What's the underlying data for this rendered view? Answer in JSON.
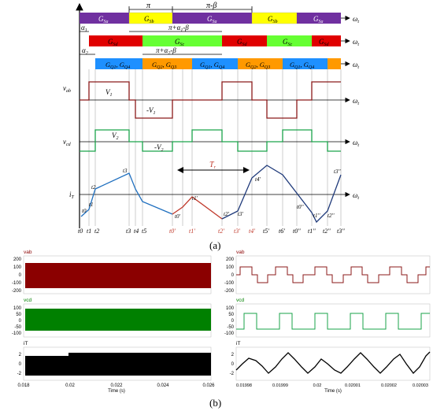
{
  "top_axis": {
    "wt": "ω",
    "t": "t"
  },
  "segments": {
    "row1": [
      {
        "label": "G",
        "sub": "Sa",
        "color": "#7030a0"
      },
      {
        "label": "G",
        "sub": "Sb",
        "color": "#ffff00"
      },
      {
        "label": "G",
        "sub": "Sa",
        "color": "#7030a0"
      },
      {
        "label": "G",
        "sub": "Sb",
        "color": "#ffff00"
      },
      {
        "label": "G",
        "sub": "Sa",
        "color": "#7030a0"
      }
    ],
    "row2": [
      {
        "label": "G",
        "sub": "Sd",
        "color": "#e00000"
      },
      {
        "label": "G",
        "sub": "Sc",
        "color": "#66ff33"
      },
      {
        "label": "G",
        "sub": "Sd",
        "color": "#e00000"
      },
      {
        "label": "G",
        "sub": "Sc",
        "color": "#66ff33"
      },
      {
        "label": "G",
        "sub": "Sd",
        "color": "#e00000"
      }
    ],
    "row3": [
      {
        "label": "G",
        "sub": "Q1",
        "label2": "G",
        "sub2": "Q4",
        "color": "#1e90ff"
      },
      {
        "label": "G",
        "sub": "Q2",
        "label2": "G",
        "sub2": "Q3",
        "color": "#ff9900"
      },
      {
        "label": "G",
        "sub": "Q1",
        "label2": "G",
        "sub2": "Q4",
        "color": "#1e90ff"
      },
      {
        "label": "G",
        "sub": "Q2",
        "label2": "G",
        "sub2": "Q3",
        "color": "#ff9900"
      },
      {
        "label": "G",
        "sub": "Q1",
        "label2": "G",
        "sub2": "Q4",
        "color": "#1e90ff"
      }
    ]
  },
  "annotations": {
    "pi": "π",
    "pi_minus_beta": "π-β",
    "alpha1": "α",
    "alpha1_sub": "1",
    "alpha2": "α",
    "alpha2_sub": "2",
    "pi_alpha_beta": "π+α",
    "pi_alpha_beta_sub": "1",
    "pi_alpha_beta_rest": "-β",
    "pi_alpha2_beta": "π+α",
    "pi_alpha2_beta_sub": "2",
    "pi_alpha2_beta_rest": "-β",
    "Tr": "T",
    "Tr_sub": "r"
  },
  "waveforms": {
    "vab": "v",
    "vab_sub": "ab",
    "vcd": "v",
    "vcd_sub": "cd",
    "iT": "i",
    "iT_sub": "T",
    "V1": "V",
    "V1_sub": "1",
    "mV1": "-V",
    "mV1_sub": "1",
    "V2": "V",
    "V2_sub": "2",
    "mV2": "-V",
    "mV2_sub": "2"
  },
  "t_labels_black": [
    "t0",
    "t1",
    "t2",
    "t3",
    "t4",
    "t5"
  ],
  "t_labels_red": [
    "t0'",
    "t1'",
    "t2'",
    "t3'",
    "t4'"
  ],
  "t_labels_blue": [
    "t5'",
    "t6'",
    "t0''",
    "t1''",
    "t2''",
    "t3''"
  ],
  "curve_labels": [
    "t0",
    "t1",
    "t2",
    "t3",
    "t0'",
    "t1'",
    "t2'",
    "t3'",
    "t4'",
    "t0''",
    "t1''",
    "t2''",
    "t3''"
  ],
  "caption_a": "(a)",
  "caption_b": "(b)",
  "scopes": {
    "left": {
      "vab": {
        "title": "vab",
        "ticks": [
          "200",
          "100",
          "0",
          "-100",
          "-200"
        ]
      },
      "vcd": {
        "title": "vcd",
        "ticks": [
          "100",
          "50",
          "0",
          "-50",
          "-100"
        ]
      },
      "iT": {
        "title": "iT",
        "ticks": [
          "2",
          "0",
          "-2"
        ]
      },
      "xticks": [
        "0.018",
        "0.02",
        "0.022",
        "0.024",
        "0.026"
      ],
      "xlabel": "Time (s)"
    },
    "right": {
      "vab": {
        "title": "vab",
        "ticks": [
          "200",
          "100",
          "0",
          "-100",
          "-200"
        ]
      },
      "vcd": {
        "title": "vcd",
        "ticks": [
          "100",
          "50",
          "0",
          "-50",
          "-100"
        ]
      },
      "iT": {
        "title": "iT",
        "ticks": [
          "2",
          "0",
          "-2"
        ]
      },
      "xticks": [
        "0.01998",
        "0.01999",
        "0.02",
        "0.02001",
        "0.02002",
        "0.02003"
      ],
      "xlabel": "Time (s)"
    }
  },
  "colors": {
    "vab": "#8b0000",
    "vcd": "#008000",
    "iT": "#000000",
    "square_vab": "#8b1a1a",
    "square_vcd": "#1aa34a",
    "current_blue": "#1f6fbf",
    "current_red": "#c0392b",
    "current_navy": "#1f3a7a"
  }
}
